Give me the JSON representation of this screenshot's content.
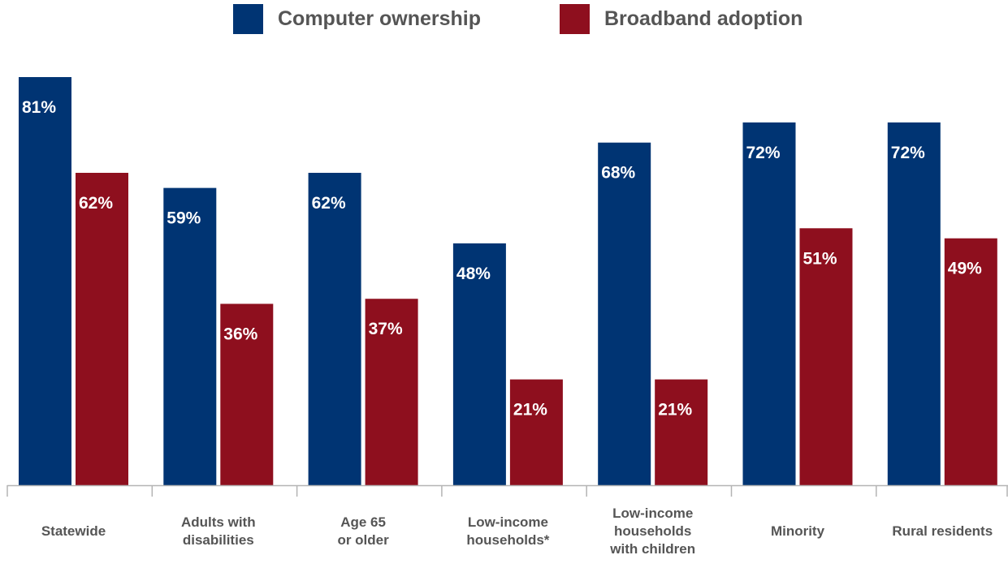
{
  "chart_data": {
    "type": "bar",
    "title": "",
    "xlabel": "",
    "ylabel": "",
    "ylim": [
      0,
      81
    ],
    "grid": false,
    "legend_position": "top-center",
    "categories": [
      "Statewide",
      "Adults with disabilities",
      "Age 65 or older",
      "Low-income households*",
      "Low-income households with children",
      "Minority",
      "Rural residents"
    ],
    "category_lines": [
      [
        "Statewide"
      ],
      [
        "Adults with",
        "disabilities"
      ],
      [
        "Age 65",
        "or older"
      ],
      [
        "Low-income",
        "households*"
      ],
      [
        "Low-income",
        "households",
        "with children"
      ],
      [
        "Minority"
      ],
      [
        "Rural residents"
      ]
    ],
    "series": [
      {
        "name": "Computer ownership",
        "color": "#003473",
        "values": [
          81,
          59,
          62,
          48,
          68,
          72,
          72
        ],
        "labels": [
          "81%",
          "59%",
          "62%",
          "48%",
          "68%",
          "72%",
          "72%"
        ]
      },
      {
        "name": "Broadband adoption",
        "color": "#8e0f1e",
        "values": [
          62,
          36,
          37,
          21,
          21,
          51,
          49
        ],
        "labels": [
          "62%",
          "36%",
          "37%",
          "21%",
          "21%",
          "51%",
          "49%"
        ]
      }
    ]
  }
}
